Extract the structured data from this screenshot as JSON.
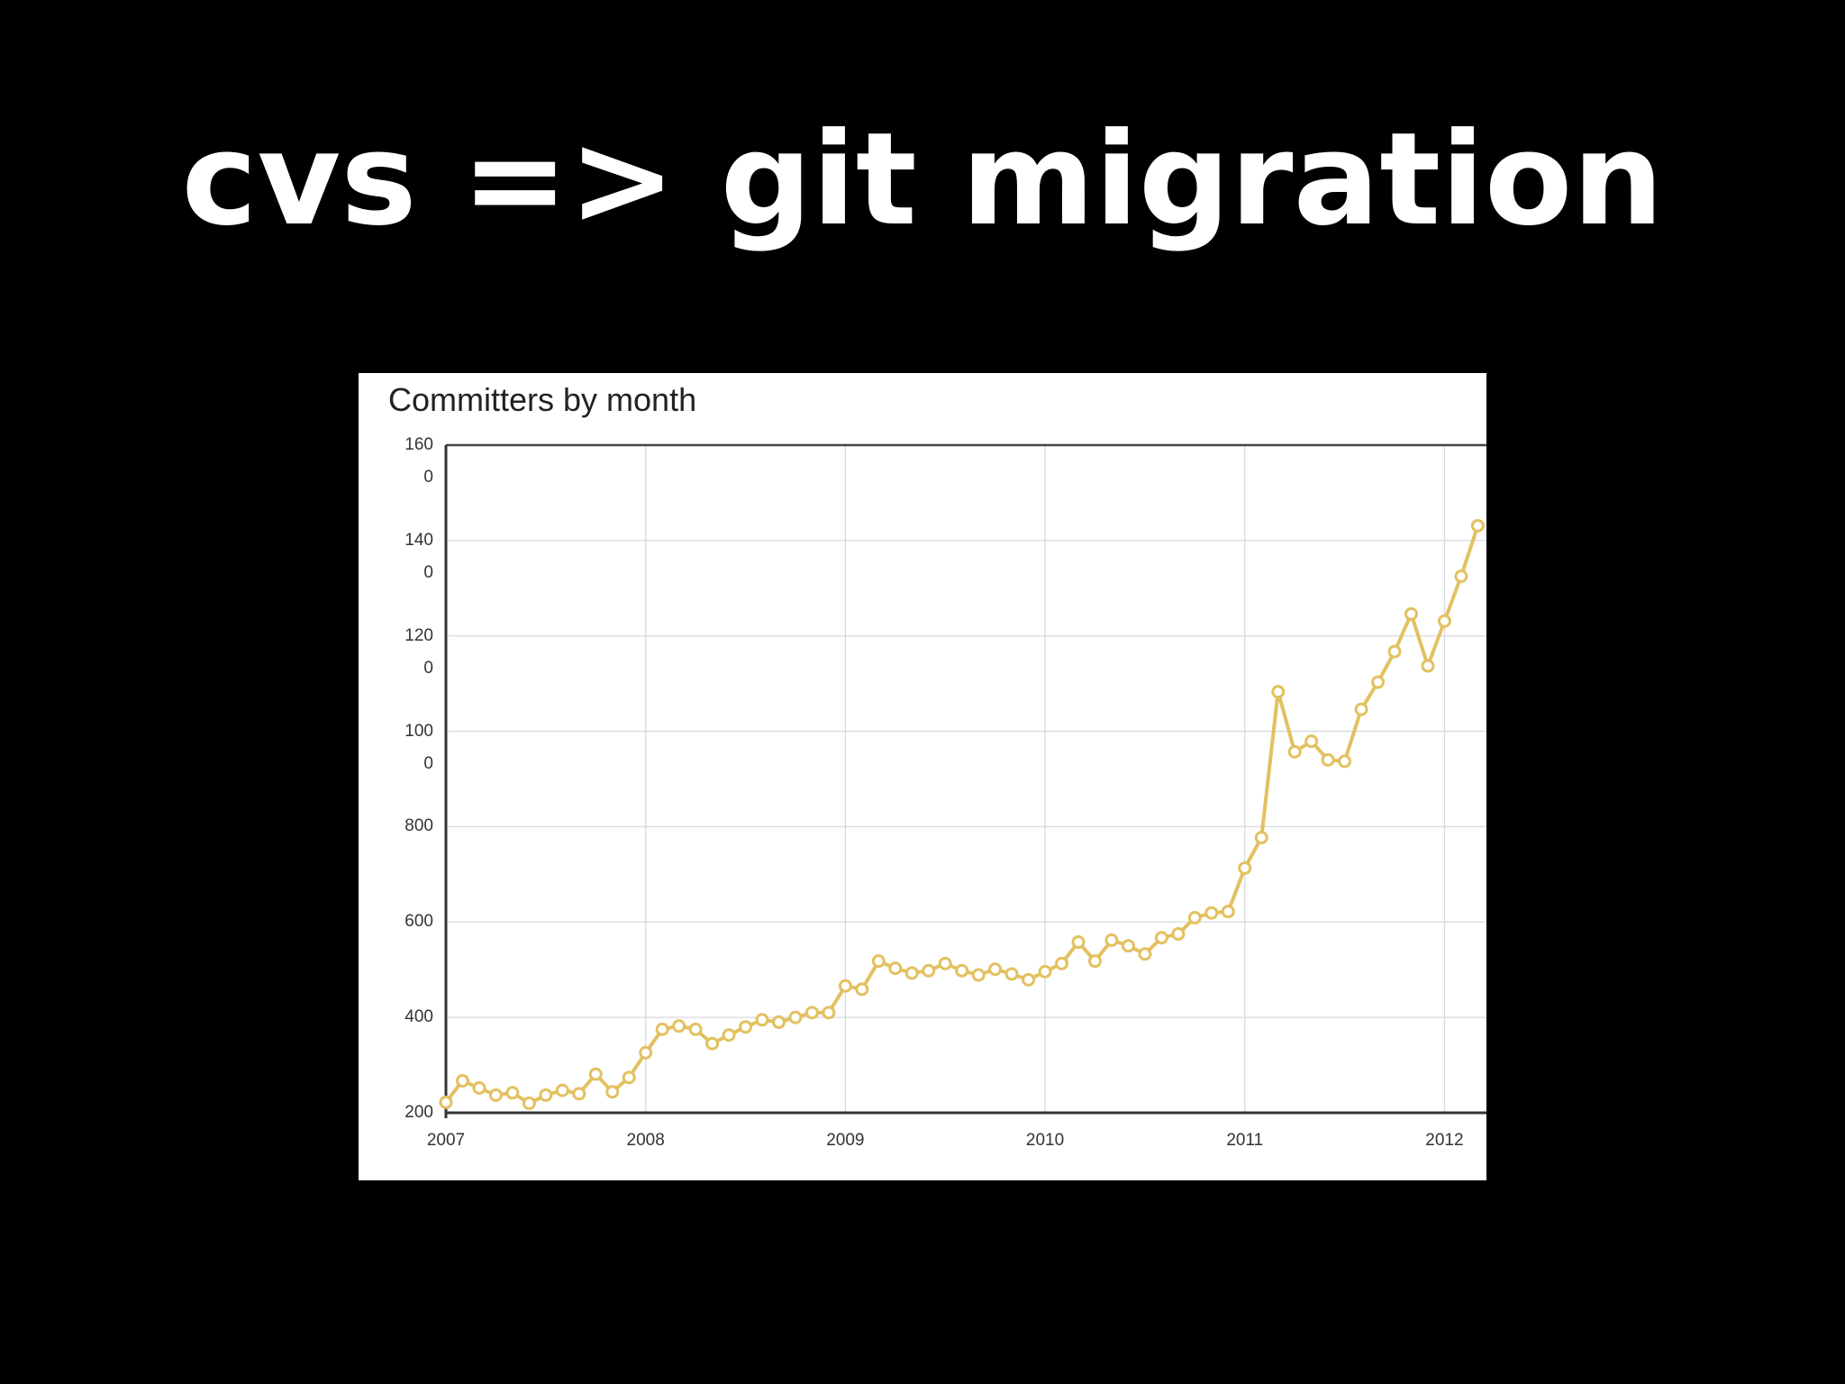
{
  "slide_title": "cvs => git migration",
  "chart_data": {
    "type": "line",
    "title": "Committers by month",
    "x": [
      2007,
      2007.0833,
      2007.1667,
      2007.25,
      2007.3333,
      2007.4167,
      2007.5,
      2007.5833,
      2007.6667,
      2007.75,
      2007.8333,
      2007.9167,
      2008,
      2008.0833,
      2008.1667,
      2008.25,
      2008.3333,
      2008.4167,
      2008.5,
      2008.5833,
      2008.6667,
      2008.75,
      2008.8333,
      2008.9167,
      2009,
      2009.0833,
      2009.1667,
      2009.25,
      2009.3333,
      2009.4167,
      2009.5,
      2009.5833,
      2009.6667,
      2009.75,
      2009.8333,
      2009.9167,
      2010,
      2010.0833,
      2010.1667,
      2010.25,
      2010.3333,
      2010.4167,
      2010.5,
      2010.5833,
      2010.6667,
      2010.75,
      2010.8333,
      2010.9167,
      2011,
      2011.0833,
      2011.1667,
      2011.25,
      2011.3333,
      2011.4167,
      2011.5,
      2011.5833,
      2011.6667,
      2011.75,
      2011.8333,
      2011.9167,
      2012,
      2012.0833,
      2012.1667
    ],
    "series": [
      {
        "name": "Committers",
        "color": "#e3c160",
        "values": [
          222,
          267,
          252,
          237,
          242,
          220,
          237,
          247,
          240,
          281,
          244,
          274,
          326,
          375,
          382,
          375,
          345,
          363,
          380,
          395,
          390,
          400,
          410,
          410,
          466,
          459,
          518,
          503,
          493,
          498,
          513,
          498,
          489,
          501,
          491,
          479,
          496,
          513,
          558,
          518,
          562,
          550,
          533,
          567,
          575,
          609,
          619,
          622,
          713,
          777,
          1083,
          957,
          979,
          940,
          937,
          1046,
          1103,
          1167,
          1246,
          1137,
          1231,
          1325,
          1431
        ]
      }
    ],
    "xlim": [
      2007,
      2012.21
    ],
    "xticks": [
      2007,
      2008,
      2009,
      2010,
      2011,
      2012
    ],
    "ylim": [
      200,
      1600
    ],
    "yticks": [
      200,
      400,
      600,
      800,
      1000,
      1200,
      1400,
      1600
    ],
    "grid": true
  }
}
